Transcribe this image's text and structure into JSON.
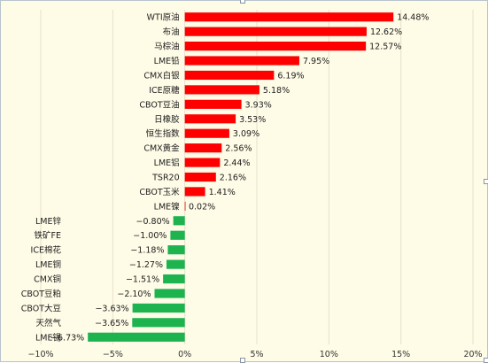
{
  "chart_data": {
    "type": "bar",
    "orientation": "horizontal",
    "categories": [
      "WTI原油",
      "布油",
      "马棕油",
      "LME铅",
      "CMX白银",
      "ICE原糖",
      "CBOT豆油",
      "日橡胶",
      "恒生指数",
      "CMX黄金",
      "LME铝",
      "TSR20",
      "CBOT玉米",
      "LME镍",
      "LME锌",
      "铁矿FE",
      "ICE棉花",
      "LME铜",
      "CMX铜",
      "CBOT豆粕",
      "CBOT大豆",
      "天然气",
      "LME锡"
    ],
    "values": [
      14.48,
      12.62,
      12.57,
      7.95,
      6.19,
      5.18,
      3.93,
      3.53,
      3.09,
      2.56,
      2.44,
      2.16,
      1.41,
      0.02,
      -0.8,
      -1.0,
      -1.18,
      -1.27,
      -1.51,
      -2.1,
      -3.63,
      -3.65,
      -6.73
    ],
    "value_labels": [
      "14.48%",
      "12.62%",
      "12.57%",
      "7.95%",
      "6.19%",
      "5.18%",
      "3.93%",
      "3.53%",
      "3.09%",
      "2.56%",
      "2.44%",
      "2.16%",
      "1.41%",
      "0.02%",
      "−0.80%",
      "−1.00%",
      "−1.18%",
      "−1.27%",
      "−1.51%",
      "−2.10%",
      "−3.63%",
      "−3.65%",
      "−6.73%"
    ],
    "xlim": [
      -10,
      20
    ],
    "xticks": [
      -10,
      -5,
      0,
      5,
      10,
      15,
      20
    ],
    "xtick_labels": [
      "−10%",
      "−5%",
      "0%",
      "5%",
      "10%",
      "15%",
      "20%"
    ],
    "grid": "vertical",
    "legend": "none",
    "colors": {
      "positive": "#ff0000",
      "negative": "#1db34f",
      "background": "#fefbe6",
      "grid": "#e6e1cb"
    }
  }
}
